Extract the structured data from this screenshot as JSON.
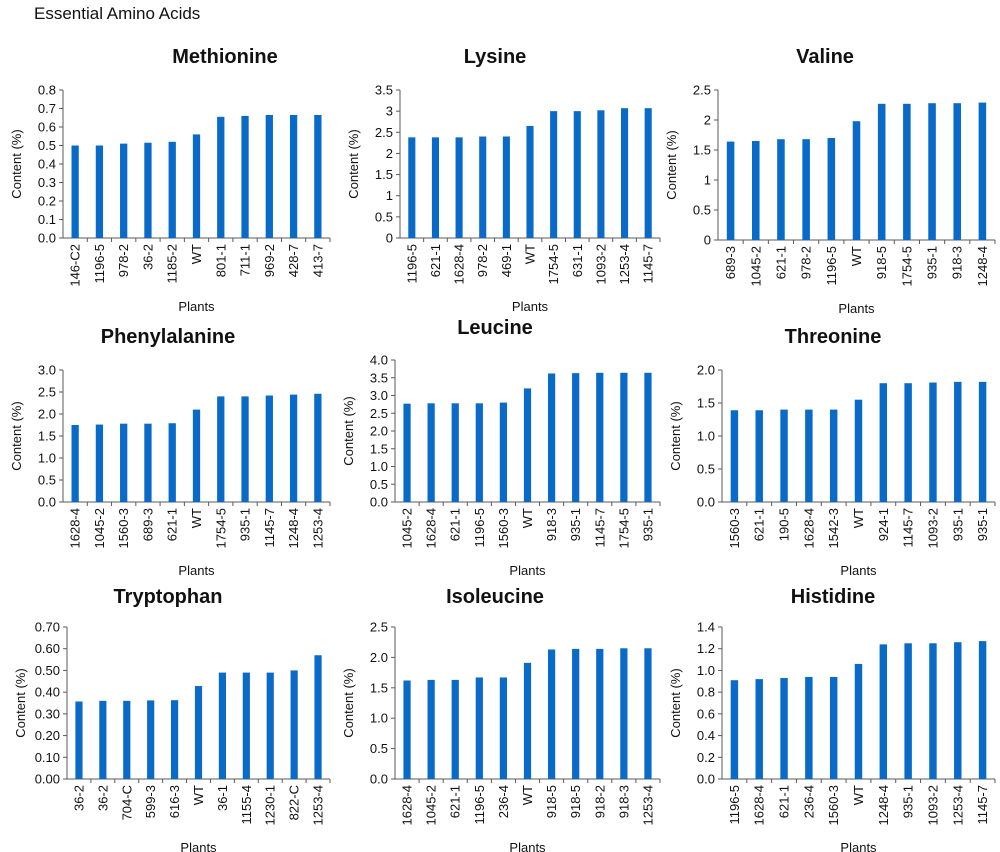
{
  "page_title": "Essential Amino Acids",
  "colors": {
    "bar": "#0A6AC8",
    "axis": "#595959",
    "text": "#111111"
  },
  "chart_data": [
    {
      "type": "bar",
      "title": "Methionine",
      "xlabel": "Plants",
      "ylabel": "Content (%)",
      "ylim": [
        0,
        0.8
      ],
      "yticks": [
        "0.0",
        "0.1",
        "0.2",
        "0.3",
        "0.4",
        "0.5",
        "0.6",
        "0.7",
        "0.8"
      ],
      "categories": [
        "146-C2",
        "1196-5",
        "978-2",
        "36-2",
        "1185-2",
        "WT",
        "801-1",
        "711-1",
        "969-2",
        "428-7",
        "413-7"
      ],
      "values": [
        0.5,
        0.5,
        0.51,
        0.515,
        0.52,
        0.56,
        0.655,
        0.66,
        0.665,
        0.665,
        0.665
      ]
    },
    {
      "type": "bar",
      "title": "Lysine",
      "xlabel": "Plants",
      "ylabel": "Content (%)",
      "ylim": [
        0,
        3.5
      ],
      "yticks": [
        "0",
        "0.5",
        "1",
        "1.5",
        "2",
        "2.5",
        "3",
        "3.5"
      ],
      "categories": [
        "1196-5",
        "621-1",
        "1628-4",
        "978-2",
        "469-1",
        "WT",
        "1754-5",
        "631-1",
        "1093-2",
        "1253-4",
        "1145-7"
      ],
      "values": [
        2.38,
        2.38,
        2.38,
        2.4,
        2.4,
        2.65,
        3.0,
        3.0,
        3.02,
        3.07,
        3.07
      ]
    },
    {
      "type": "bar",
      "title": "Valine",
      "xlabel": "Plants",
      "ylabel": "Content (%)",
      "ylim": [
        0,
        2.5
      ],
      "yticks": [
        "0",
        "0.5",
        "1",
        "1.5",
        "2",
        "2.5"
      ],
      "categories": [
        "689-3",
        "1045-2",
        "621-1",
        "978-2",
        "1196-5",
        "WT",
        "918-5",
        "1754-5",
        "935-1",
        "918-3",
        "1248-4"
      ],
      "values": [
        1.64,
        1.65,
        1.68,
        1.68,
        1.7,
        1.98,
        2.27,
        2.27,
        2.28,
        2.28,
        2.29
      ]
    },
    {
      "type": "bar",
      "title": "Phenylalanine",
      "xlabel": "Plants",
      "ylabel": "Content (%)",
      "ylim": [
        0,
        3.0
      ],
      "yticks": [
        "0.0",
        "0.5",
        "1.0",
        "1.5",
        "2.0",
        "2.5",
        "3.0"
      ],
      "categories": [
        "1628-4",
        "1045-2",
        "1560-3",
        "689-3",
        "621-1",
        "WT",
        "1754-5",
        "935-1",
        "1145-7",
        "1248-4",
        "1253-4"
      ],
      "values": [
        1.75,
        1.76,
        1.78,
        1.78,
        1.79,
        2.1,
        2.4,
        2.4,
        2.42,
        2.44,
        2.46
      ]
    },
    {
      "type": "bar",
      "title": "Leucine",
      "xlabel": "Plants",
      "ylabel": "Content (%)",
      "ylim": [
        0,
        4.0
      ],
      "yticks": [
        "0.0",
        "0.5",
        "1.0",
        "1.5",
        "2.0",
        "2.5",
        "3.0",
        "3.5",
        "4.0"
      ],
      "categories": [
        "1045-2",
        "1628-4",
        "621-1",
        "1196-5",
        "1560-3",
        "WT",
        "918-3",
        "935-1",
        "1145-7",
        "1754-5",
        "935-1"
      ],
      "values": [
        2.77,
        2.78,
        2.78,
        2.78,
        2.8,
        3.2,
        3.62,
        3.63,
        3.64,
        3.64,
        3.64
      ]
    },
    {
      "type": "bar",
      "title": "Threonine",
      "xlabel": "Plants",
      "ylabel": "Content (%)",
      "ylim": [
        0,
        2.0
      ],
      "yticks": [
        "0.0",
        "0.5",
        "1.0",
        "1.5",
        "2.0"
      ],
      "categories": [
        "1560-3",
        "621-1",
        "190-5",
        "1628-4",
        "1542-3",
        "WT",
        "924-1",
        "1145-7",
        "1093-2",
        "935-1",
        "935-1"
      ],
      "values": [
        1.39,
        1.39,
        1.4,
        1.4,
        1.4,
        1.55,
        1.8,
        1.8,
        1.81,
        1.82,
        1.82
      ]
    },
    {
      "type": "bar",
      "title": "Tryptophan",
      "xlabel": "Plants",
      "ylabel": "Content (%)",
      "ylim": [
        0,
        0.7
      ],
      "yticks": [
        "0.00",
        "0.10",
        "0.20",
        "0.30",
        "0.40",
        "0.50",
        "0.60",
        "0.70"
      ],
      "categories": [
        "36-2",
        "36-2",
        "704-C",
        "599-3",
        "616-3",
        "WT",
        "36-1",
        "1155-4",
        "1230-1",
        "822-C",
        "1253-4"
      ],
      "values": [
        0.357,
        0.36,
        0.36,
        0.362,
        0.363,
        0.428,
        0.49,
        0.49,
        0.49,
        0.5,
        0.57
      ]
    },
    {
      "type": "bar",
      "title": "Isoleucine",
      "xlabel": "Plants",
      "ylabel": "Content (%)",
      "ylim": [
        0,
        2.5
      ],
      "yticks": [
        "0.0",
        "0.5",
        "1.0",
        "1.5",
        "2.0",
        "2.5"
      ],
      "categories": [
        "1628-4",
        "1045-2",
        "621-1",
        "1196-5",
        "236-4",
        "WT",
        "918-5",
        "918-5",
        "918-2",
        "918-3",
        "1253-4"
      ],
      "values": [
        1.62,
        1.63,
        1.63,
        1.67,
        1.67,
        1.91,
        2.13,
        2.14,
        2.14,
        2.15,
        2.15
      ]
    },
    {
      "type": "bar",
      "title": "Histidine",
      "xlabel": "Plants",
      "ylabel": "Content (%)",
      "ylim": [
        0,
        1.4
      ],
      "yticks": [
        "0.0",
        "0.2",
        "0.4",
        "0.6",
        "0.8",
        "1.0",
        "1.2",
        "1.4"
      ],
      "categories": [
        "1196-5",
        "1628-4",
        "621-1",
        "236-4",
        "1560-3",
        "WT",
        "1248-4",
        "935-1",
        "1093-2",
        "1253-4",
        "1145-7"
      ],
      "values": [
        0.91,
        0.92,
        0.93,
        0.94,
        0.94,
        1.06,
        1.24,
        1.25,
        1.25,
        1.26,
        1.27
      ]
    }
  ]
}
